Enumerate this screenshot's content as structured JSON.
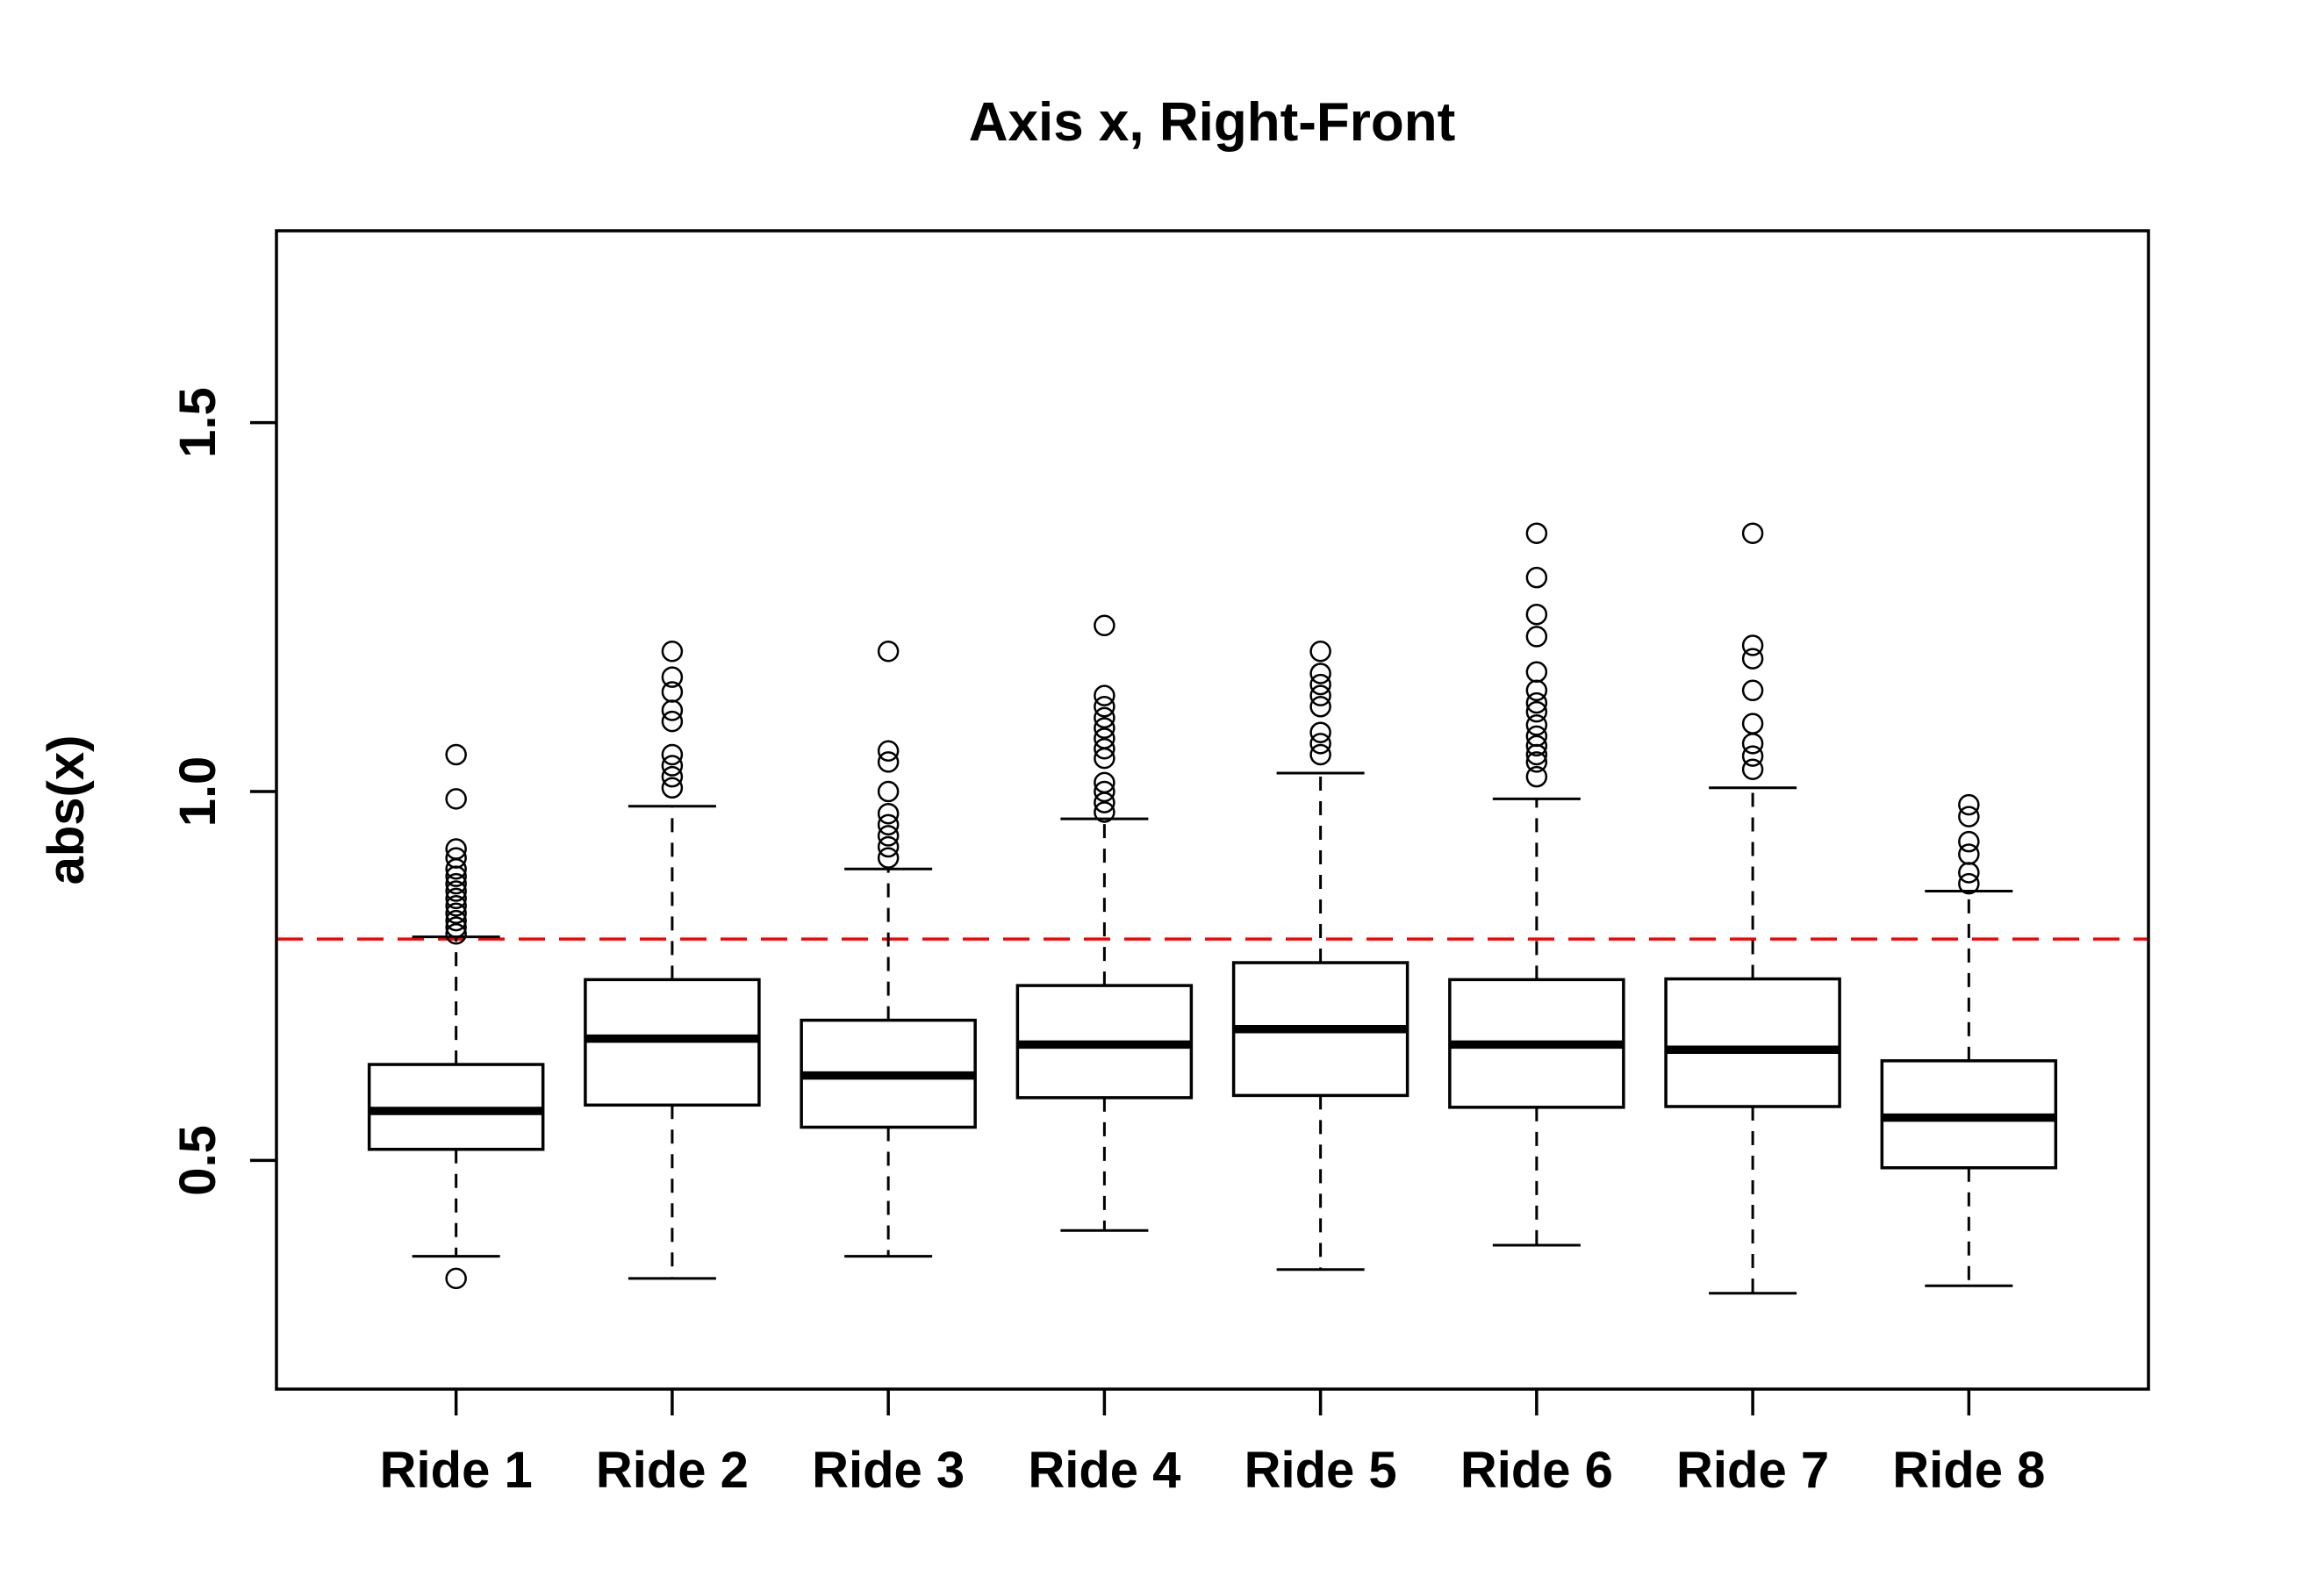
{
  "figure": {
    "background": "#ffffff",
    "foreground": "#000000"
  },
  "chart_data": {
    "type": "boxplot",
    "title": "Axis x, Right-Front",
    "xlabel": "",
    "ylabel": "abs(x)",
    "categories": [
      "Ride 1",
      "Ride 2",
      "Ride 3",
      "Ride 4",
      "Ride 5",
      "Ride 6",
      "Ride 7",
      "Ride 8"
    ],
    "y_ticks": [
      0.5,
      1.0,
      1.5
    ],
    "y_tick_labels": [
      "0.5",
      "1.0",
      "1.5"
    ],
    "ylim": [
      0.19,
      1.76
    ],
    "grid": false,
    "legend": null,
    "box_color": "#000000",
    "box_fill": "#ffffff",
    "reference_line": {
      "y": 0.8,
      "color": "#ff0000",
      "style": "dashed"
    },
    "boxes": [
      {
        "label": "Ride 1",
        "whisker_low": 0.37,
        "q1": 0.515,
        "median": 0.567,
        "q3": 0.63,
        "whisker_high": 0.803,
        "outliers": [
          0.34,
          0.807,
          0.816,
          0.825,
          0.835,
          0.845,
          0.855,
          0.865,
          0.875,
          0.885,
          0.895,
          0.91,
          0.922,
          0.99,
          1.05
        ]
      },
      {
        "label": "Ride 2",
        "whisker_low": 0.34,
        "q1": 0.575,
        "median": 0.665,
        "q3": 0.745,
        "whisker_high": 0.98,
        "outliers": [
          1.005,
          1.02,
          1.035,
          1.05,
          1.095,
          1.11,
          1.135,
          1.155,
          1.19
        ]
      },
      {
        "label": "Ride 3",
        "whisker_low": 0.37,
        "q1": 0.545,
        "median": 0.615,
        "q3": 0.69,
        "whisker_high": 0.895,
        "outliers": [
          0.91,
          0.925,
          0.94,
          0.955,
          0.97,
          1.0,
          1.04,
          1.055,
          1.19
        ]
      },
      {
        "label": "Ride 4",
        "whisker_low": 0.405,
        "q1": 0.585,
        "median": 0.657,
        "q3": 0.737,
        "whisker_high": 0.963,
        "outliers": [
          0.972,
          0.985,
          1.0,
          1.012,
          1.045,
          1.058,
          1.072,
          1.086,
          1.1,
          1.115,
          1.13,
          1.225
        ]
      },
      {
        "label": "Ride 5",
        "whisker_low": 0.352,
        "q1": 0.588,
        "median": 0.678,
        "q3": 0.768,
        "whisker_high": 1.025,
        "outliers": [
          1.05,
          1.065,
          1.08,
          1.115,
          1.13,
          1.145,
          1.16,
          1.19
        ]
      },
      {
        "label": "Ride 6",
        "whisker_low": 0.385,
        "q1": 0.572,
        "median": 0.657,
        "q3": 0.745,
        "whisker_high": 0.99,
        "outliers": [
          1.02,
          1.04,
          1.05,
          1.062,
          1.075,
          1.09,
          1.108,
          1.12,
          1.137,
          1.162,
          1.21,
          1.24,
          1.29,
          1.35
        ]
      },
      {
        "label": "Ride 7",
        "whisker_low": 0.32,
        "q1": 0.573,
        "median": 0.65,
        "q3": 0.746,
        "whisker_high": 1.005,
        "outliers": [
          1.03,
          1.048,
          1.065,
          1.092,
          1.137,
          1.18,
          1.198,
          1.35
        ]
      },
      {
        "label": "Ride 8",
        "whisker_low": 0.33,
        "q1": 0.49,
        "median": 0.558,
        "q3": 0.635,
        "whisker_high": 0.865,
        "outliers": [
          0.875,
          0.89,
          0.915,
          0.932,
          0.966,
          0.982
        ]
      }
    ]
  }
}
